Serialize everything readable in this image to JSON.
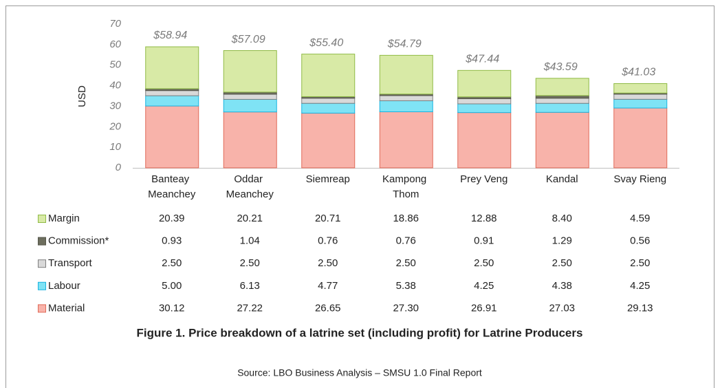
{
  "chart_data": {
    "type": "stacked-bar",
    "ylabel": "USD",
    "categories": [
      "Banteay Meanchey",
      "Oddar Meanchey",
      "Siemreap",
      "Kampong Thom",
      "Prey Veng",
      "Kandal",
      "Svay Rieng"
    ],
    "ylim": [
      0,
      70
    ],
    "yticks": [
      0,
      10,
      20,
      30,
      40,
      50,
      60,
      70
    ],
    "totals": [
      58.94,
      57.09,
      55.4,
      54.79,
      47.44,
      43.59,
      41.03
    ],
    "total_labels": [
      "$58.94",
      "$57.09",
      "$55.40",
      "$54.79",
      "$47.44",
      "$43.59",
      "$41.03"
    ],
    "series": [
      {
        "name": "Material",
        "color": "#f8b3aa",
        "border": "#e06a58",
        "values": [
          30.12,
          27.22,
          26.65,
          27.3,
          26.91,
          27.03,
          29.13
        ],
        "value_labels": [
          "30.12",
          "27.22",
          "26.65",
          "27.30",
          "26.91",
          "27.03",
          "29.13"
        ]
      },
      {
        "name": "Labour",
        "color": "#7fe3f5",
        "border": "#19b3df",
        "values": [
          5,
          6.13,
          4.77,
          5.38,
          4.25,
          4.38,
          4.25
        ],
        "value_labels": [
          "5.00",
          "6.13",
          "4.77",
          "5.38",
          "4.25",
          "4.38",
          "4.25"
        ]
      },
      {
        "name": "Transport",
        "color": "#d9d9d9",
        "border": "#7f7f7f",
        "values": [
          2.5,
          2.5,
          2.5,
          2.5,
          2.5,
          2.5,
          2.5
        ],
        "value_labels": [
          "2.50",
          "2.50",
          "2.50",
          "2.50",
          "2.50",
          "2.50",
          "2.50"
        ]
      },
      {
        "name": "Commission*",
        "color": "#6d6e5e",
        "border": "#55564a",
        "values": [
          0.93,
          1.04,
          0.76,
          0.76,
          0.91,
          1.29,
          0.56
        ],
        "value_labels": [
          "0.93",
          "1.04",
          "0.76",
          "0.76",
          "0.91",
          "1.29",
          "0.56"
        ]
      },
      {
        "name": "Margin",
        "color": "#d8eaa6",
        "border": "#8fba45",
        "values": [
          20.39,
          20.21,
          20.71,
          18.86,
          12.88,
          8.4,
          4.59
        ],
        "value_labels": [
          "20.39",
          "20.21",
          "20.71",
          "18.86",
          "12.88",
          "8.40",
          "4.59"
        ]
      }
    ],
    "caption": "Figure 1. Price breakdown of a latrine set (including profit) for Latrine Producers",
    "source": "Source: LBO Business Analysis – SMSU 1.0 Final Report"
  }
}
